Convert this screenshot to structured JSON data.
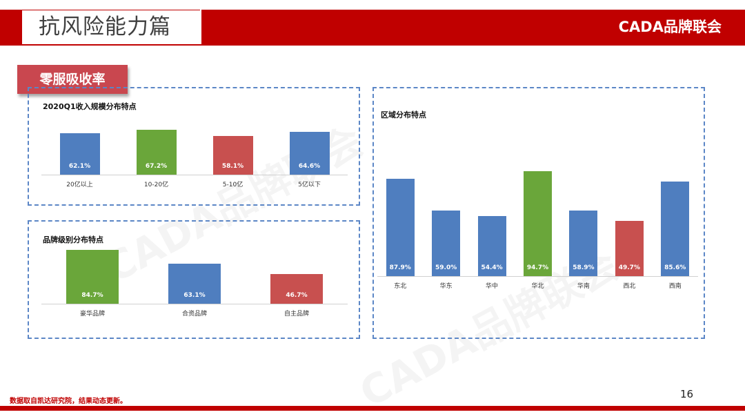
{
  "header": {
    "title": "抗风险能力篇",
    "brand": "CADA品牌联会"
  },
  "section_tag": "零服吸收率",
  "panels": {
    "scale": {
      "title": "2020Q1收入规模分布特点"
    },
    "brand_level": {
      "title": "品牌级别分布特点"
    },
    "region": {
      "title": "区域分布特点"
    }
  },
  "chart_data": [
    {
      "type": "bar",
      "title": "2020Q1收入规模分布特点",
      "categories": [
        "20亿以上",
        "10-20亿",
        "5-10亿",
        "5亿以下"
      ],
      "values": [
        62.1,
        67.2,
        58.1,
        64.6
      ],
      "labels": [
        "62.1%",
        "67.2%",
        "58.1%",
        "64.6%"
      ],
      "colors": [
        "#4f7ebf",
        "#6aa63a",
        "#c8504f",
        "#4f7ebf"
      ]
    },
    {
      "type": "bar",
      "title": "品牌级别分布特点",
      "categories": [
        "豪华品牌",
        "合资品牌",
        "自主品牌"
      ],
      "values": [
        84.7,
        63.1,
        46.7
      ],
      "labels": [
        "84.7%",
        "63.1%",
        "46.7%"
      ],
      "colors": [
        "#6aa63a",
        "#4f7ebf",
        "#c8504f"
      ]
    },
    {
      "type": "bar",
      "title": "区域分布特点",
      "categories": [
        "东北",
        "华东",
        "华中",
        "华北",
        "华南",
        "西北",
        "西南"
      ],
      "values": [
        87.9,
        59.0,
        54.4,
        94.7,
        58.9,
        49.7,
        85.6
      ],
      "labels": [
        "87.9%",
        "59.0%",
        "54.4%",
        "94.7%",
        "58.9%",
        "49.7%",
        "85.6%"
      ],
      "colors": [
        "#4f7ebf",
        "#4f7ebf",
        "#4f7ebf",
        "#6aa63a",
        "#4f7ebf",
        "#c8504f",
        "#4f7ebf"
      ]
    }
  ],
  "watermark": "CADA品牌联会",
  "footer": {
    "note": "数据取自凯达研究院，结果动态更新。",
    "page": "16"
  }
}
